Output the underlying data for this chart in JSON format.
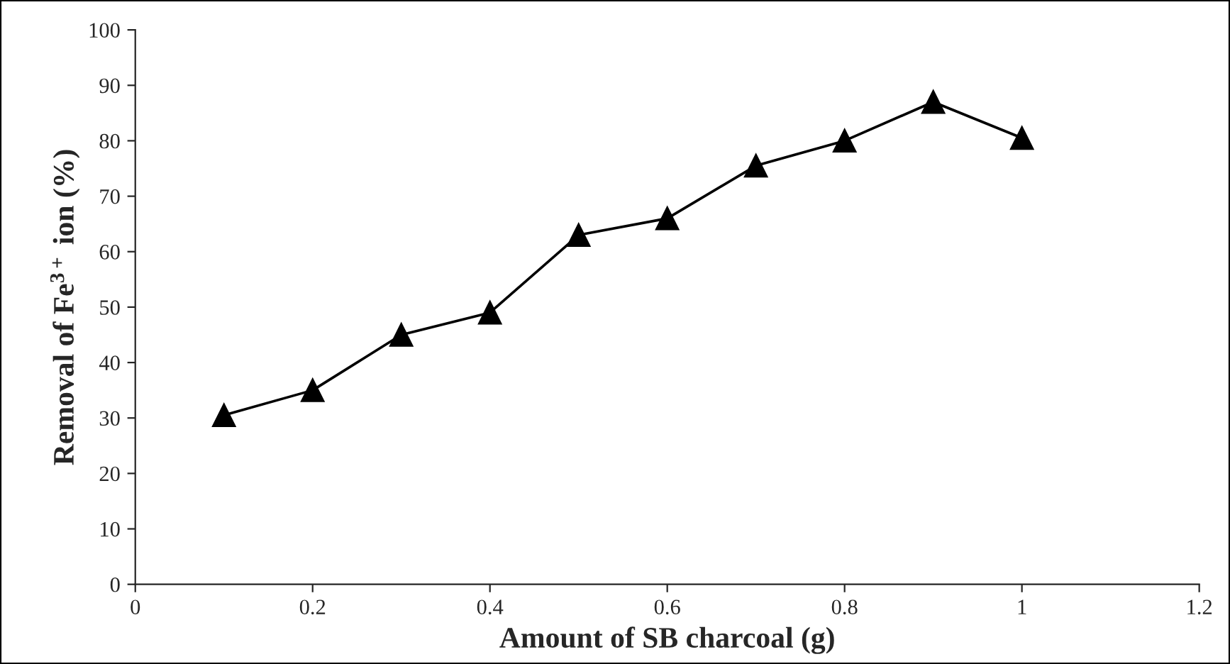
{
  "chart_data": {
    "type": "line",
    "xlabel": "Amount of SB charcoal (g)",
    "ylabel": "Removal of Fe$^{3+}$ ion (%)",
    "x": [
      0.1,
      0.2,
      0.3,
      0.4,
      0.5,
      0.6,
      0.7,
      0.8,
      0.9,
      1.0
    ],
    "series": [
      {
        "color": "#000000",
        "values": [
          30.5,
          35,
          45,
          49,
          63,
          66,
          75.5,
          80,
          87,
          80.5
        ]
      }
    ],
    "xlim": [
      0,
      1.2
    ],
    "xticks": [
      0,
      0.2,
      0.4,
      0.6,
      0.8,
      1,
      1.2
    ],
    "ylim": [
      0,
      100
    ],
    "yticks": [
      0,
      10,
      20,
      30,
      40,
      50,
      60,
      70,
      80,
      90,
      100
    ],
    "marker": "triangle",
    "line_style": "solid",
    "grid": false,
    "legend": false
  }
}
